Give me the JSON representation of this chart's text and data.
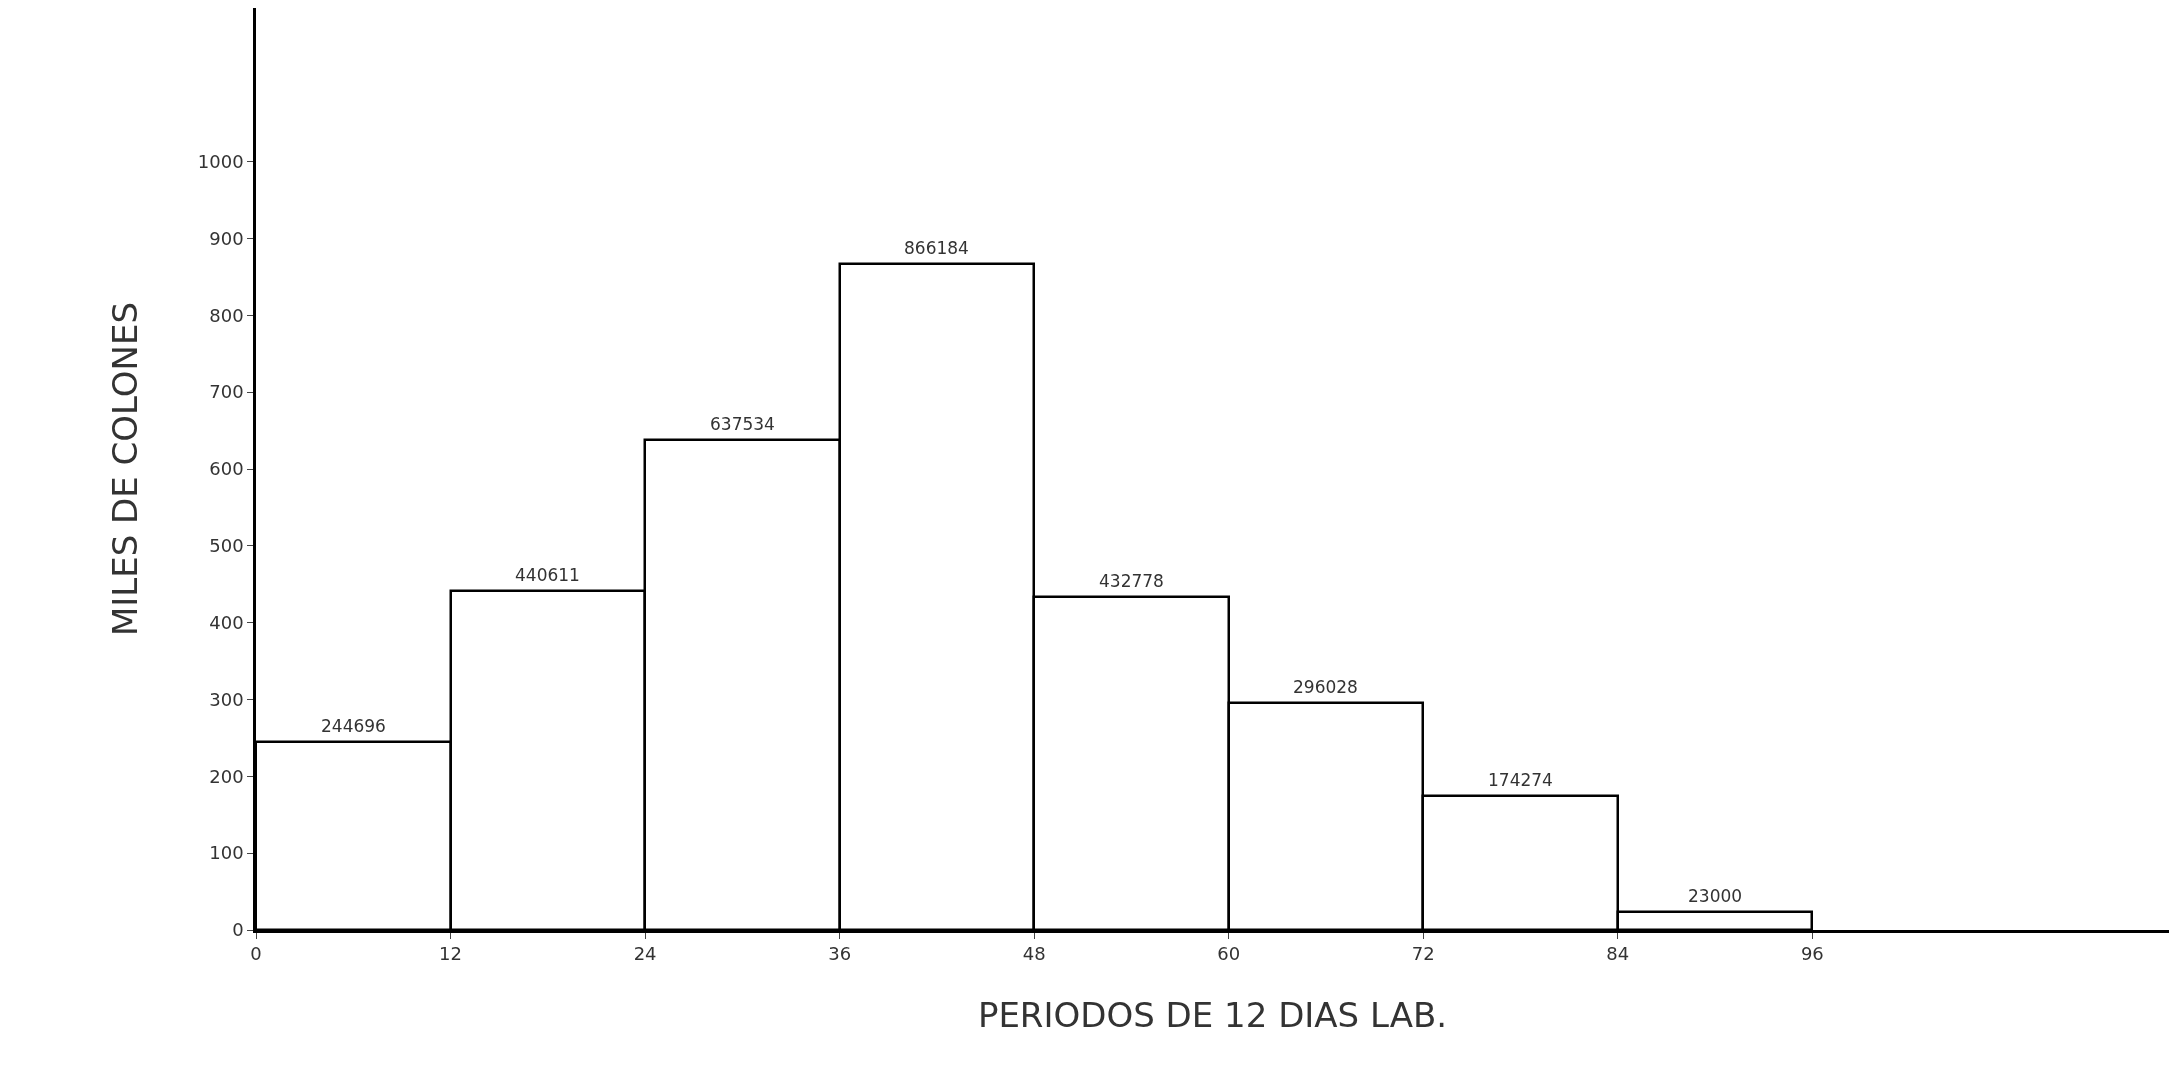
{
  "chart_data": {
    "type": "histogram",
    "xlabel": "PERIODOS DE 12 DIAS LAB.",
    "ylabel": "MILES DE COLONES",
    "bins": [
      0,
      12,
      24,
      36,
      48,
      60,
      72,
      84,
      96
    ],
    "values": [
      244.696,
      440.611,
      637.534,
      866.184,
      432.778,
      296.028,
      174.274,
      23.0
    ],
    "annotations": [
      {
        "text": "244696",
        "x": 6,
        "y": 244.696
      },
      {
        "text": "440611",
        "x": 18,
        "y": 440.611
      },
      {
        "text": "637534",
        "x": 30,
        "y": 637.534
      },
      {
        "text": "866184",
        "x": 42,
        "y": 866.184
      },
      {
        "text": "432778",
        "x": 54,
        "y": 432.778
      },
      {
        "text": "296028",
        "x": 66,
        "y": 296.028
      },
      {
        "text": "174274",
        "x": 78,
        "y": 174.274
      },
      {
        "text": "23000",
        "x": 90,
        "y": 23.0
      }
    ],
    "color": "#000000",
    "xlim": [
      0,
      118
    ],
    "xticks": [
      0,
      12,
      24,
      36,
      48,
      60,
      72,
      84,
      96
    ],
    "ylim": [
      0,
      1200
    ],
    "yticks": [
      0,
      100,
      200,
      300,
      400,
      500,
      600,
      700,
      800,
      900,
      1000
    ],
    "grid": false,
    "legend": false
  }
}
